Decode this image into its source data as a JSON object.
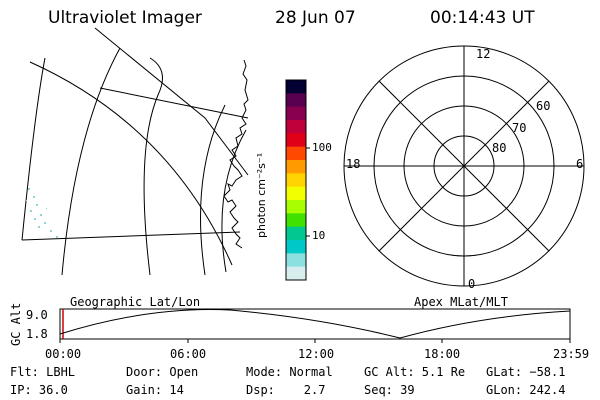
{
  "header": {
    "title": "Ultraviolet Imager",
    "date": "28 Jun 07",
    "time": "00:14:43 UT"
  },
  "colorbar": {
    "unit_label": "photon cm⁻²s⁻¹",
    "ticks": [
      "100",
      "10"
    ],
    "colors": [
      "#000033",
      "#5a0050",
      "#8a0050",
      "#c0003a",
      "#e00018",
      "#ff4800",
      "#ff9a00",
      "#ffd400",
      "#f2ff00",
      "#a8ff00",
      "#40e000",
      "#00c890",
      "#00c8c8",
      "#8ce0e0",
      "#d8eeee"
    ]
  },
  "polar": {
    "mlt_labels": {
      "top": "12",
      "left": "18",
      "right": "6",
      "bottom": "0"
    },
    "lat_labels": [
      "60",
      "70",
      "80"
    ]
  },
  "orbit": {
    "left_title": "Geographic Lat/Lon",
    "right_title": "Apex MLat/MLT",
    "y_axis_label": "GC Alt",
    "y_ticks": [
      "9.0",
      "1.8"
    ],
    "time_ticks": [
      "00:00",
      "06:00",
      "12:00",
      "18:00",
      "23:59"
    ]
  },
  "info": {
    "flt": "Flt: LBHL",
    "ip": "IP: 36.0",
    "door": "Door: Open",
    "gain": "Gain: 14",
    "mode": "Mode: Normal",
    "dsp": "Dsp:    2.7",
    "gc_alt": "GC Alt: 5.1 Re",
    "seq": "Seq: 39",
    "glat": "GLat: −58.1",
    "glon": "GLon: 242.4"
  }
}
